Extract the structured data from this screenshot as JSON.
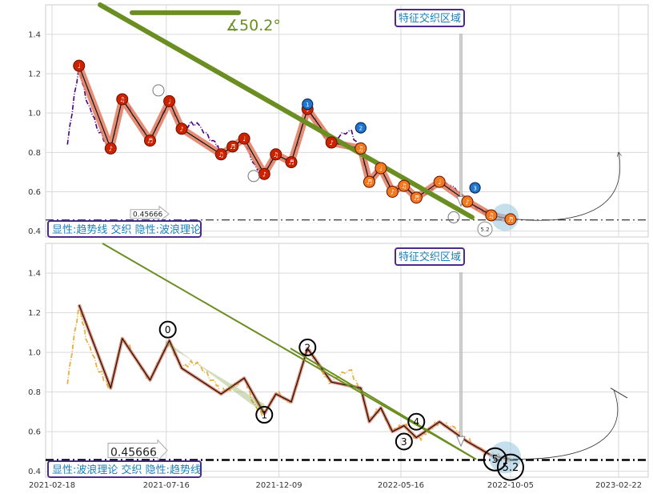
{
  "chart_data": [
    {
      "type": "line",
      "panel": "top",
      "ylim": [
        0.37,
        1.55
      ],
      "yticks": [
        "0.4",
        "0.6",
        "0.8",
        "1.0",
        "1.2",
        "1.4"
      ],
      "grid": true,
      "angle_label": "∡50.2°",
      "zone_label": "特征交织区域",
      "legend_text": "显性:趋势线 交织 隐性:波浪理论",
      "hline_label": "0.45666",
      "hline_value": 0.45666,
      "wave_point_label": "5.2",
      "badges": [
        "1",
        "2",
        "3"
      ],
      "colors": {
        "price": "#4b0082",
        "wave_fill": "#e07a5f",
        "trend": "#6b8e23",
        "note_red": "#cc2200",
        "note_orange": "#f07a20",
        "badge_blue": "#1f77d0"
      },
      "series": [
        {
          "x": [
            "2021-03-10",
            "2021-03-25",
            "2021-04-05",
            "2021-04-20",
            "2021-05-05",
            "2021-05-20",
            "2021-06-05",
            "2021-06-25",
            "2021-07-10",
            "2021-07-20",
            "2021-08-05",
            "2021-08-25",
            "2021-09-15",
            "2021-09-25",
            "2021-10-10",
            "2021-10-25",
            "2021-11-05",
            "2021-11-20",
            "2021-12-05",
            "2021-12-25",
            "2022-01-15",
            "2022-02-01",
            "2022-02-15",
            "2022-03-10",
            "2022-03-25",
            "2022-04-05",
            "2022-04-20",
            "2022-05-05",
            "2022-05-20",
            "2022-06-05",
            "2022-06-20",
            "2022-07-05",
            "2022-07-20",
            "2022-08-10",
            "2022-08-25",
            "2022-09-10",
            "2022-09-25",
            "2022-10-05"
          ],
          "values": [
            0.84,
            1.24,
            1.05,
            0.9,
            0.82,
            1.07,
            0.98,
            0.86,
            0.98,
            1.06,
            0.92,
            0.95,
            0.86,
            0.79,
            0.83,
            0.87,
            0.75,
            0.69,
            0.79,
            0.75,
            1.02,
            0.91,
            0.85,
            0.91,
            0.82,
            0.65,
            0.72,
            0.6,
            0.63,
            0.57,
            0.59,
            0.65,
            0.63,
            0.55,
            0.52,
            0.48,
            0.47,
            0.46
          ]
        }
      ]
    },
    {
      "type": "line",
      "panel": "bottom",
      "ylim": [
        0.37,
        1.55
      ],
      "yticks": [
        "0.4",
        "0.6",
        "0.8",
        "1.0",
        "1.2",
        "1.4"
      ],
      "grid": true,
      "zone_label": "特征交织区域",
      "legend_text": "显性:波浪理论 交织 隐性:趋势线",
      "hline_label": "0.45666",
      "hline_value": 0.45666,
      "wave_labels": [
        "0",
        "1",
        "2",
        "3",
        "4",
        "5",
        "5.2"
      ],
      "colors": {
        "price": "#e8b040",
        "wave_fill": "#e07a5f",
        "trend": "#6b8e23",
        "hline": "#000000"
      },
      "series": [
        {
          "x": [
            "2021-03-10",
            "2021-03-25",
            "2021-04-05",
            "2021-04-20",
            "2021-05-05",
            "2021-05-20",
            "2021-06-05",
            "2021-06-25",
            "2021-07-10",
            "2021-07-20",
            "2021-08-05",
            "2021-08-25",
            "2021-09-15",
            "2021-09-25",
            "2021-10-10",
            "2021-10-25",
            "2021-11-05",
            "2021-11-20",
            "2021-12-05",
            "2021-12-25",
            "2022-01-15",
            "2022-02-01",
            "2022-02-15",
            "2022-03-10",
            "2022-03-25",
            "2022-04-05",
            "2022-04-20",
            "2022-05-05",
            "2022-05-20",
            "2022-06-05",
            "2022-06-20",
            "2022-07-05",
            "2022-07-20",
            "2022-08-10",
            "2022-08-25",
            "2022-09-10",
            "2022-09-25",
            "2022-10-05"
          ],
          "values": [
            0.84,
            1.24,
            1.05,
            0.9,
            0.82,
            1.07,
            0.98,
            0.86,
            0.98,
            1.06,
            0.92,
            0.95,
            0.86,
            0.79,
            0.83,
            0.87,
            0.75,
            0.69,
            0.79,
            0.75,
            1.02,
            0.91,
            0.85,
            0.91,
            0.82,
            0.65,
            0.72,
            0.6,
            0.63,
            0.57,
            0.59,
            0.65,
            0.63,
            0.55,
            0.52,
            0.48,
            0.47,
            0.46
          ]
        }
      ],
      "xticks": [
        "2021-02-18",
        "2021-07-16",
        "2021-12-09",
        "2022-05-16",
        "2022-10-05",
        "2023-02-22"
      ]
    }
  ]
}
